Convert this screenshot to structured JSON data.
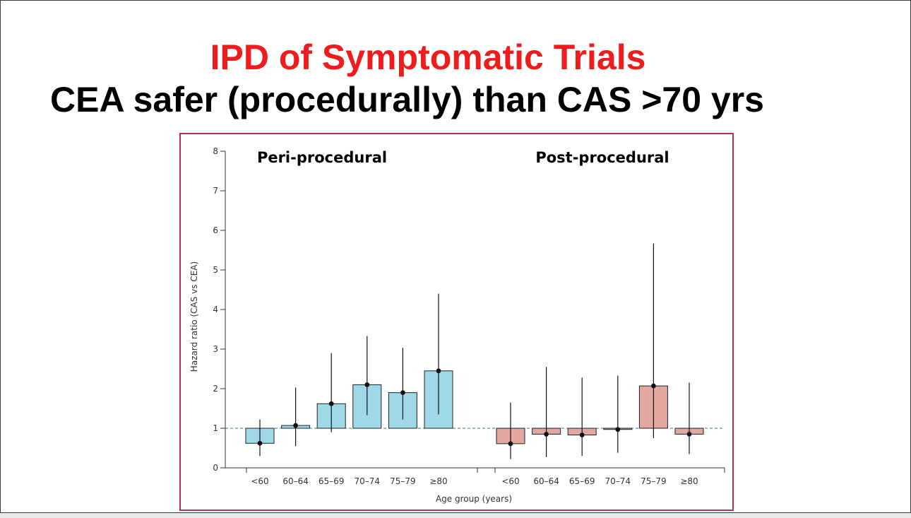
{
  "slide": {
    "title": "IPD of Symptomatic Trials",
    "subtitle": "CEA safer (procedurally) than CAS >70 yrs"
  },
  "colors": {
    "title": "#ee1c1c",
    "peri": "#9fd9e8",
    "post": "#e2a8a0",
    "frame": "#b03060",
    "refline": "#2f7f7a"
  },
  "chart_data": {
    "type": "bar",
    "xlabel": "Age group (years)",
    "ylabel": "Hazard ratio (CAS vs CEA)",
    "ylim": [
      0,
      8
    ],
    "yticks": [
      0,
      1,
      2,
      3,
      4,
      5,
      6,
      7,
      8
    ],
    "baseline": 1,
    "grid": false,
    "groups": [
      {
        "name": "Peri-procedural",
        "categories": [
          "<60",
          "60–64",
          "65–69",
          "70–74",
          "75–79",
          "≥80"
        ],
        "values": [
          0.62,
          1.07,
          1.62,
          2.1,
          1.9,
          2.45
        ],
        "ci_low": [
          0.3,
          0.55,
          0.9,
          1.33,
          1.22,
          1.35
        ],
        "ci_high": [
          1.22,
          2.03,
          2.9,
          3.33,
          3.03,
          4.4
        ]
      },
      {
        "name": "Post-procedural",
        "categories": [
          "<60",
          "60–64",
          "65–69",
          "70–74",
          "75–79",
          "≥80"
        ],
        "values": [
          0.61,
          0.85,
          0.83,
          0.97,
          2.07,
          0.85
        ],
        "ci_low": [
          0.22,
          0.27,
          0.3,
          0.38,
          0.75,
          0.35
        ],
        "ci_high": [
          1.65,
          2.55,
          2.28,
          2.33,
          5.67,
          2.15
        ]
      }
    ]
  }
}
